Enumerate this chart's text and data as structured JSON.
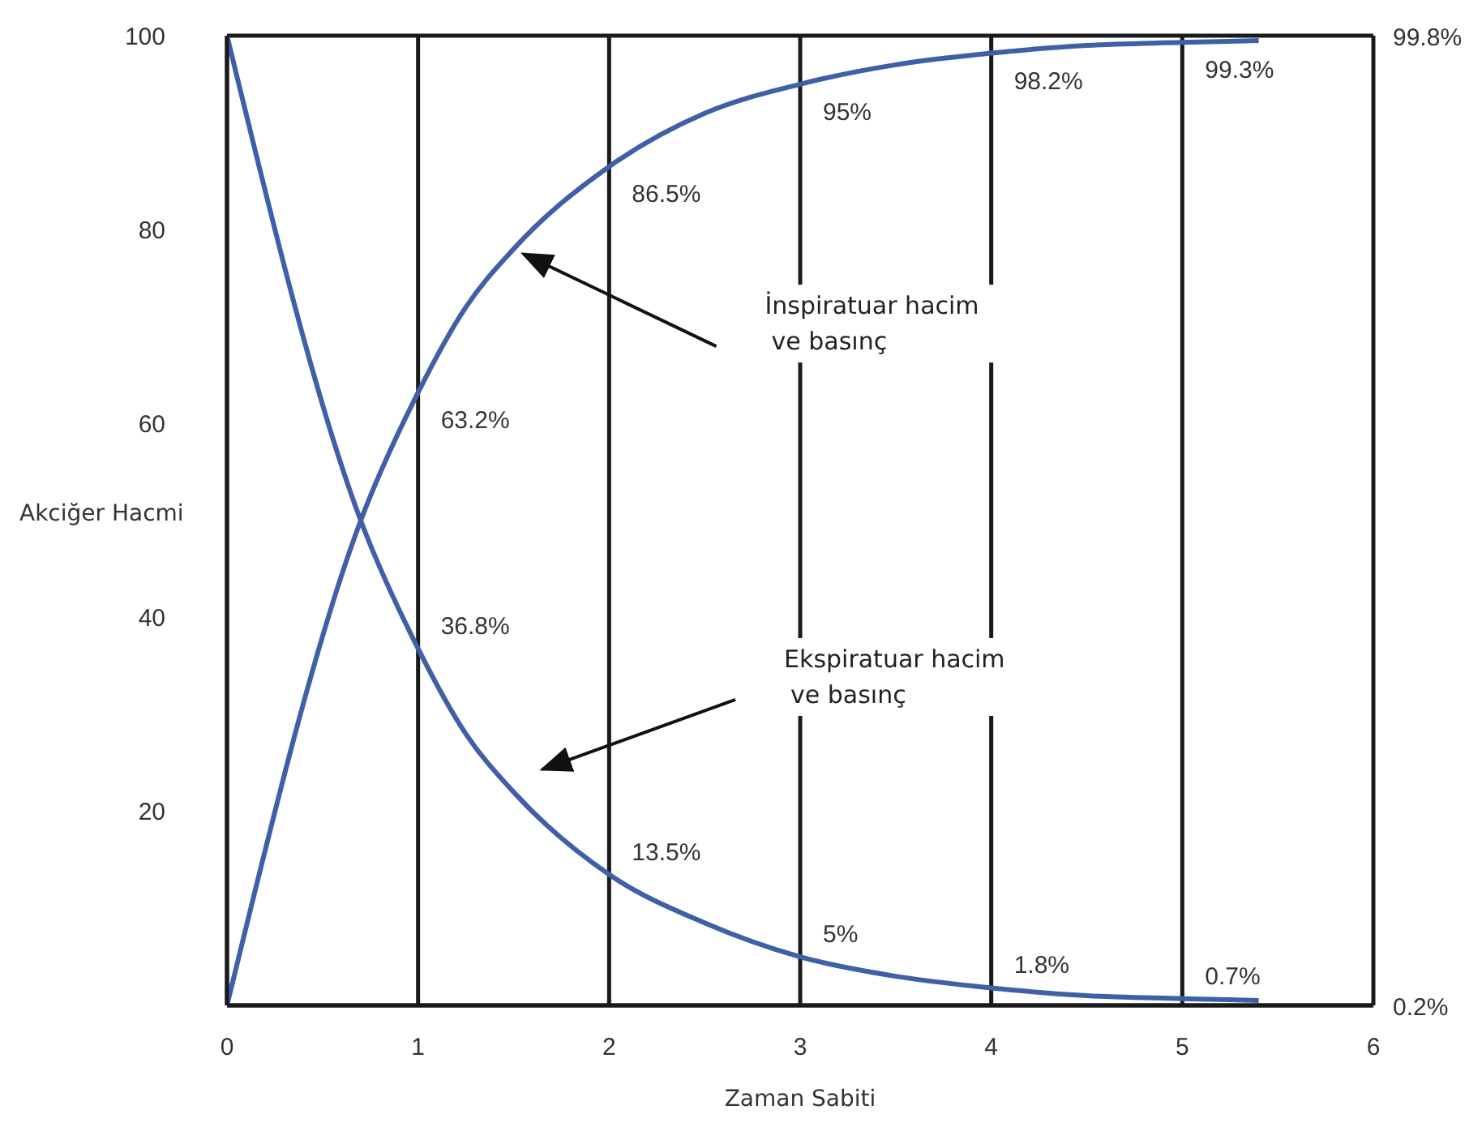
{
  "chart_data": {
    "type": "line",
    "xlabel": "Zaman Sabiti",
    "ylabel": "Akciğer Hacmi",
    "xlim": [
      0,
      6
    ],
    "xticks": [
      0,
      1,
      2,
      3,
      4,
      5,
      6
    ],
    "ylim": [
      0,
      100
    ],
    "yticks": [
      20,
      40,
      60,
      80,
      100
    ],
    "grid": true,
    "legend": false,
    "marker": "none",
    "line_style": "solid",
    "series": [
      {
        "color": "#3f5fa6",
        "x": [
          0,
          0.7,
          1,
          1.25,
          1.5,
          2,
          2.5,
          3,
          3.5,
          4,
          4.5,
          5,
          5.4
        ],
        "values": [
          0,
          50,
          63.2,
          72,
          78,
          86.5,
          92,
          95,
          97,
          98.2,
          99,
          99.3,
          99.5
        ],
        "value_labels": [
          null,
          null,
          "63.2%",
          null,
          null,
          "86.5%",
          null,
          "95%",
          null,
          "98.2%",
          null,
          "99.3%",
          null
        ]
      },
      {
        "color": "#3f5fa6",
        "x": [
          0,
          0.7,
          1,
          1.25,
          1.5,
          2,
          2.5,
          3,
          3.5,
          4,
          4.5,
          5,
          5.4
        ],
        "values": [
          100,
          50,
          36.8,
          28,
          22,
          13.5,
          8.5,
          5,
          3,
          1.8,
          1,
          0.7,
          0.5
        ],
        "value_labels": [
          null,
          null,
          "36.8%",
          null,
          null,
          "13.5%",
          null,
          "5%",
          null,
          "1.8%",
          null,
          "0.7%",
          null
        ]
      }
    ],
    "annotations": [
      "İnspiratuar hacim\nve basınç",
      "Ekspiratuar hacim\nve basınç",
      "99.8%",
      "0.2%"
    ]
  }
}
